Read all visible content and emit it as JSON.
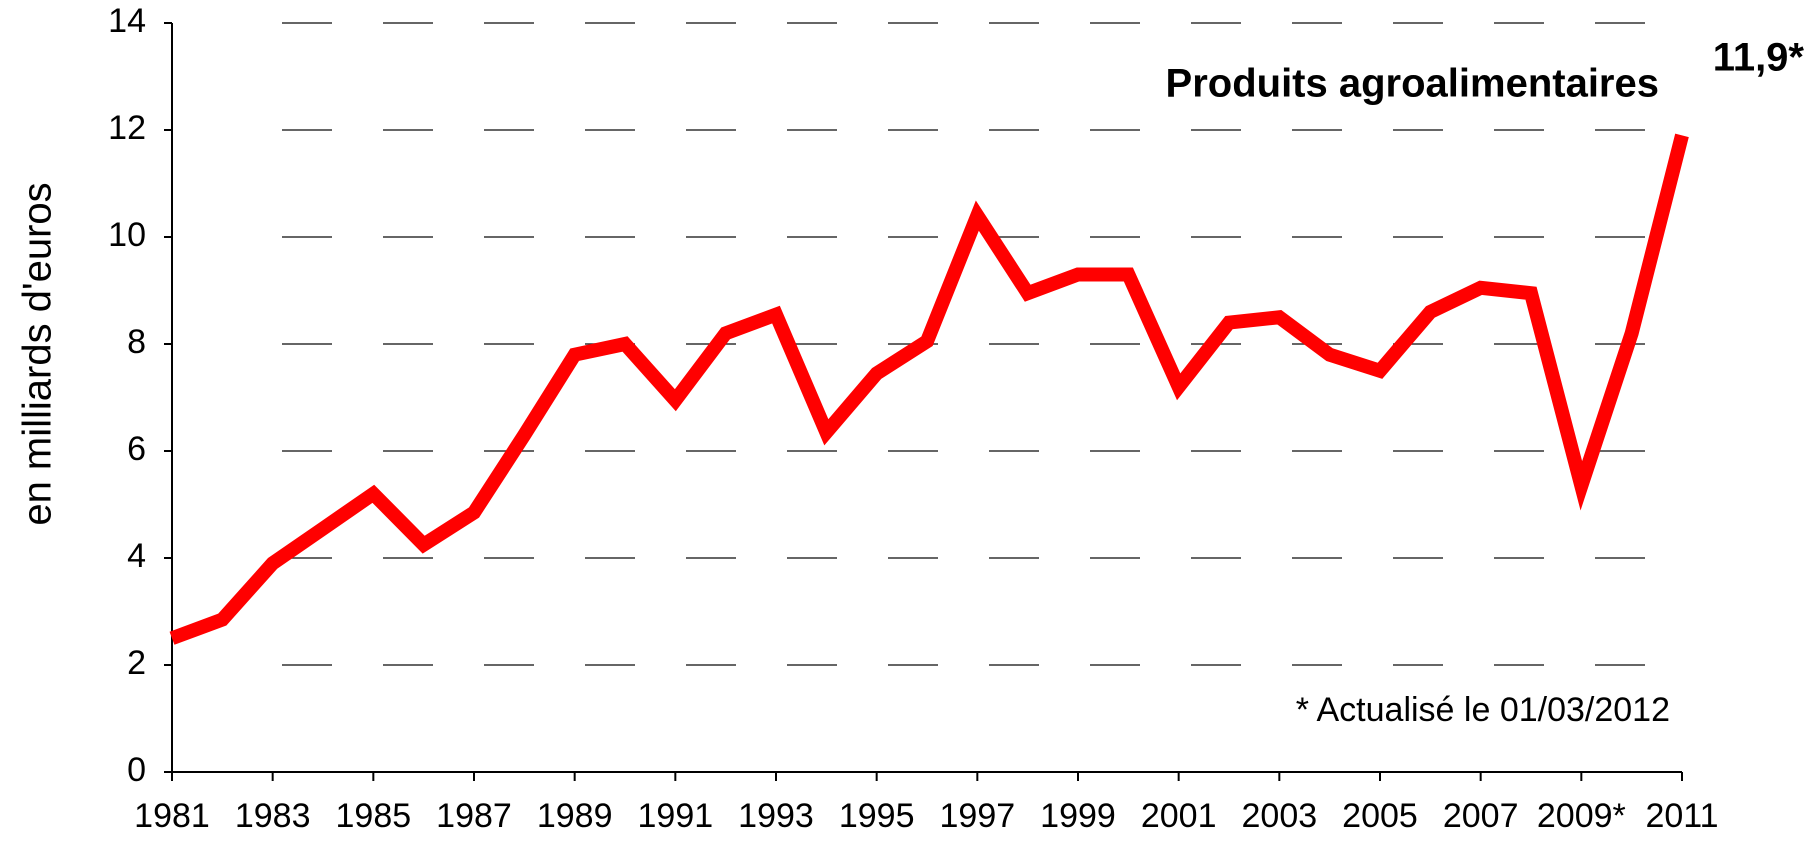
{
  "chart_data": {
    "type": "line",
    "title": "Produits agroalimentaires",
    "y_label": "en milliards d'euros",
    "annotation": "* Actualisé le 01/03/2012",
    "categories": [
      "1981",
      null,
      "1983",
      null,
      "1985",
      null,
      "1987",
      null,
      "1989",
      null,
      "1991",
      null,
      "1993",
      null,
      "1995",
      null,
      "1997",
      null,
      "1999",
      null,
      "2001",
      null,
      "2003",
      null,
      "2005",
      null,
      "2007",
      null,
      "2009*",
      null,
      "2011"
    ],
    "series": [
      {
        "name": "Produits agroalimentaires",
        "color": "#ff0000",
        "values": [
          2.5,
          2.85,
          3.9,
          4.55,
          5.2,
          4.25,
          4.85,
          6.3,
          7.8,
          8.0,
          6.95,
          8.2,
          8.55,
          6.35,
          7.45,
          8.05,
          10.4,
          8.95,
          9.3,
          9.3,
          7.2,
          8.4,
          8.5,
          7.8,
          7.5,
          8.6,
          9.05,
          8.95,
          5.35,
          8.2,
          11.9
        ],
        "value_labels": [
          null,
          null,
          null,
          null,
          null,
          null,
          null,
          null,
          null,
          null,
          null,
          null,
          null,
          null,
          null,
          null,
          null,
          null,
          null,
          null,
          null,
          null,
          null,
          null,
          null,
          null,
          null,
          null,
          null,
          null,
          "11,9*"
        ]
      }
    ],
    "ylim": [
      0,
      14
    ],
    "yticks": [
      0,
      2,
      4,
      6,
      8,
      10,
      12,
      14
    ],
    "grid": true
  }
}
